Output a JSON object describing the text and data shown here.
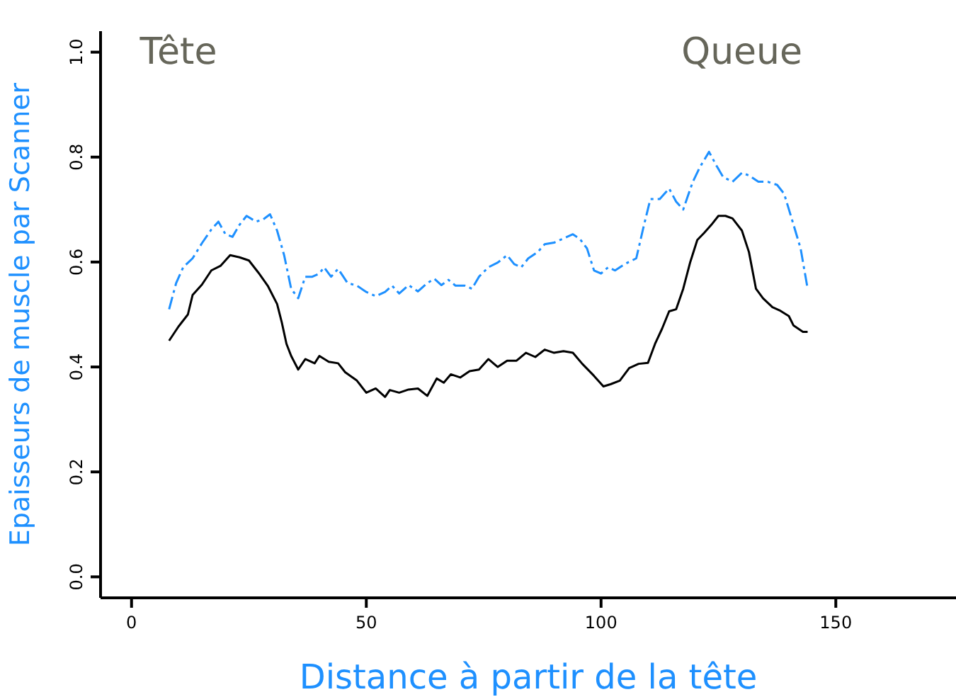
{
  "chart_data": {
    "type": "line",
    "xlabel": "Distance à partir de la tête",
    "ylabel": "Epaisseurs de muscle par Scanner",
    "annotations": [
      "Tête",
      "Queue"
    ],
    "xlim": [
      -6.6,
      175.6
    ],
    "xticks": [
      0,
      50,
      100,
      150
    ],
    "ylim": [
      -0.04,
      1.04
    ],
    "yticks": [
      {
        "value": 0,
        "label": "0.0"
      },
      0.2,
      0.4,
      0.6,
      0.8,
      {
        "value": 1,
        "label": "1.0"
      }
    ],
    "marker": "none",
    "series": [
      {
        "color": "#000000",
        "line_style": "solid",
        "x": [
          8,
          10,
          12,
          13,
          15,
          17,
          19,
          21,
          23,
          25,
          27,
          29,
          31,
          32,
          33,
          34,
          35.5,
          37,
          39,
          40,
          42,
          44,
          45.5,
          48,
          50,
          52,
          54,
          55,
          57,
          59,
          61,
          63,
          65,
          66.5,
          68,
          70,
          72,
          74,
          76,
          78,
          80,
          82,
          84,
          86,
          88,
          90,
          92,
          94,
          96,
          98.5,
          100.5,
          102,
          104,
          106,
          108,
          110,
          111.5,
          113,
          114.5,
          116,
          117.5,
          119,
          120.5,
          122,
          123.5,
          125,
          126.5,
          128,
          130,
          131.5,
          133,
          134.5,
          136.5,
          138,
          140,
          141,
          143,
          144
        ],
        "values": [
          0.45,
          0.477,
          0.5,
          0.537,
          0.557,
          0.584,
          0.593,
          0.613,
          0.609,
          0.603,
          0.58,
          0.555,
          0.52,
          0.485,
          0.444,
          0.421,
          0.395,
          0.415,
          0.407,
          0.421,
          0.41,
          0.407,
          0.39,
          0.374,
          0.351,
          0.359,
          0.343,
          0.356,
          0.351,
          0.357,
          0.359,
          0.345,
          0.378,
          0.37,
          0.386,
          0.38,
          0.392,
          0.395,
          0.415,
          0.4,
          0.412,
          0.412,
          0.427,
          0.419,
          0.433,
          0.427,
          0.43,
          0.427,
          0.406,
          0.383,
          0.363,
          0.367,
          0.374,
          0.398,
          0.406,
          0.408,
          0.444,
          0.473,
          0.506,
          0.51,
          0.549,
          0.6,
          0.642,
          0.656,
          0.671,
          0.688,
          0.688,
          0.683,
          0.66,
          0.619,
          0.549,
          0.531,
          0.514,
          0.508,
          0.497,
          0.479,
          0.467,
          0.467
        ]
      },
      {
        "color": "#1e90ff",
        "line_style": "dashed",
        "x": [
          8,
          9.5,
          11,
          13,
          15,
          17,
          18.5,
          20,
          21.5,
          23,
          24.5,
          26.5,
          28,
          29.5,
          31,
          32.5,
          34,
          35.5,
          37,
          38.5,
          40,
          41,
          42.5,
          44,
          46,
          48,
          50,
          52,
          54,
          55.5,
          57,
          59,
          61,
          63,
          64.5,
          66,
          67.5,
          69,
          71,
          72.5,
          74,
          76,
          78,
          80,
          81.5,
          83,
          84.5,
          86.5,
          88,
          90,
          92,
          94,
          95.5,
          97,
          98.5,
          100,
          101.5,
          103,
          105,
          107.5,
          109,
          110.5,
          112.5,
          114.5,
          116,
          117.5,
          119.5,
          121,
          123,
          124.5,
          126,
          128,
          130,
          131.5,
          133.5,
          135.5,
          137.5,
          139,
          141,
          142.5,
          144
        ],
        "values": [
          0.51,
          0.56,
          0.59,
          0.607,
          0.636,
          0.662,
          0.677,
          0.653,
          0.648,
          0.671,
          0.688,
          0.677,
          0.681,
          0.691,
          0.66,
          0.613,
          0.549,
          0.531,
          0.572,
          0.572,
          0.578,
          0.59,
          0.572,
          0.587,
          0.56,
          0.555,
          0.543,
          0.535,
          0.543,
          0.555,
          0.54,
          0.556,
          0.544,
          0.56,
          0.568,
          0.556,
          0.566,
          0.555,
          0.555,
          0.549,
          0.572,
          0.59,
          0.599,
          0.613,
          0.596,
          0.59,
          0.607,
          0.619,
          0.634,
          0.637,
          0.645,
          0.653,
          0.644,
          0.626,
          0.584,
          0.578,
          0.59,
          0.584,
          0.596,
          0.607,
          0.665,
          0.72,
          0.72,
          0.74,
          0.715,
          0.7,
          0.752,
          0.78,
          0.81,
          0.785,
          0.762,
          0.753,
          0.77,
          0.765,
          0.753,
          0.753,
          0.747,
          0.73,
          0.671,
          0.626,
          0.549
        ]
      }
    ]
  }
}
